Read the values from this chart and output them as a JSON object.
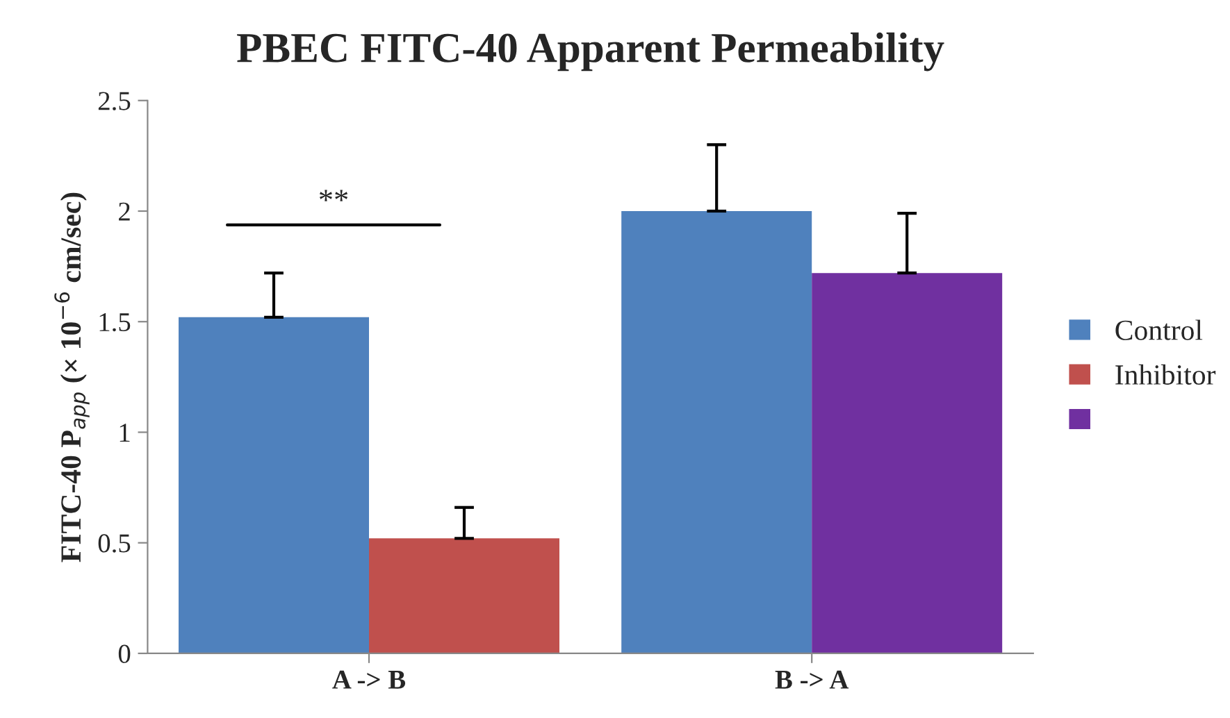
{
  "chart_data": {
    "type": "bar",
    "title": "PBEC FITC-40 Apparent Permeability",
    "ylabel": "FITC-40 P$_{app}$ (× 10$^{−6}$ cm/sec)",
    "categories": [
      "A -> B",
      "B -> A"
    ],
    "series": [
      {
        "name": "Control",
        "color": "#4f81bd",
        "values": [
          1.52,
          2.0
        ],
        "errors": [
          [
            1.52,
            1.72
          ],
          [
            2.0,
            2.3
          ]
        ]
      },
      {
        "name": "Inhibitor",
        "colors": [
          "#c0504d",
          "#7030a0"
        ],
        "values": [
          0.52,
          1.72
        ],
        "errors": [
          [
            0.52,
            0.66
          ],
          [
            1.72,
            1.99
          ]
        ]
      }
    ],
    "ylim": [
      0,
      2.5
    ],
    "yticks": [
      0,
      0.5,
      1,
      1.5,
      2,
      2.5
    ],
    "annotations": [
      "**"
    ],
    "grid": false,
    "legend": "right"
  }
}
